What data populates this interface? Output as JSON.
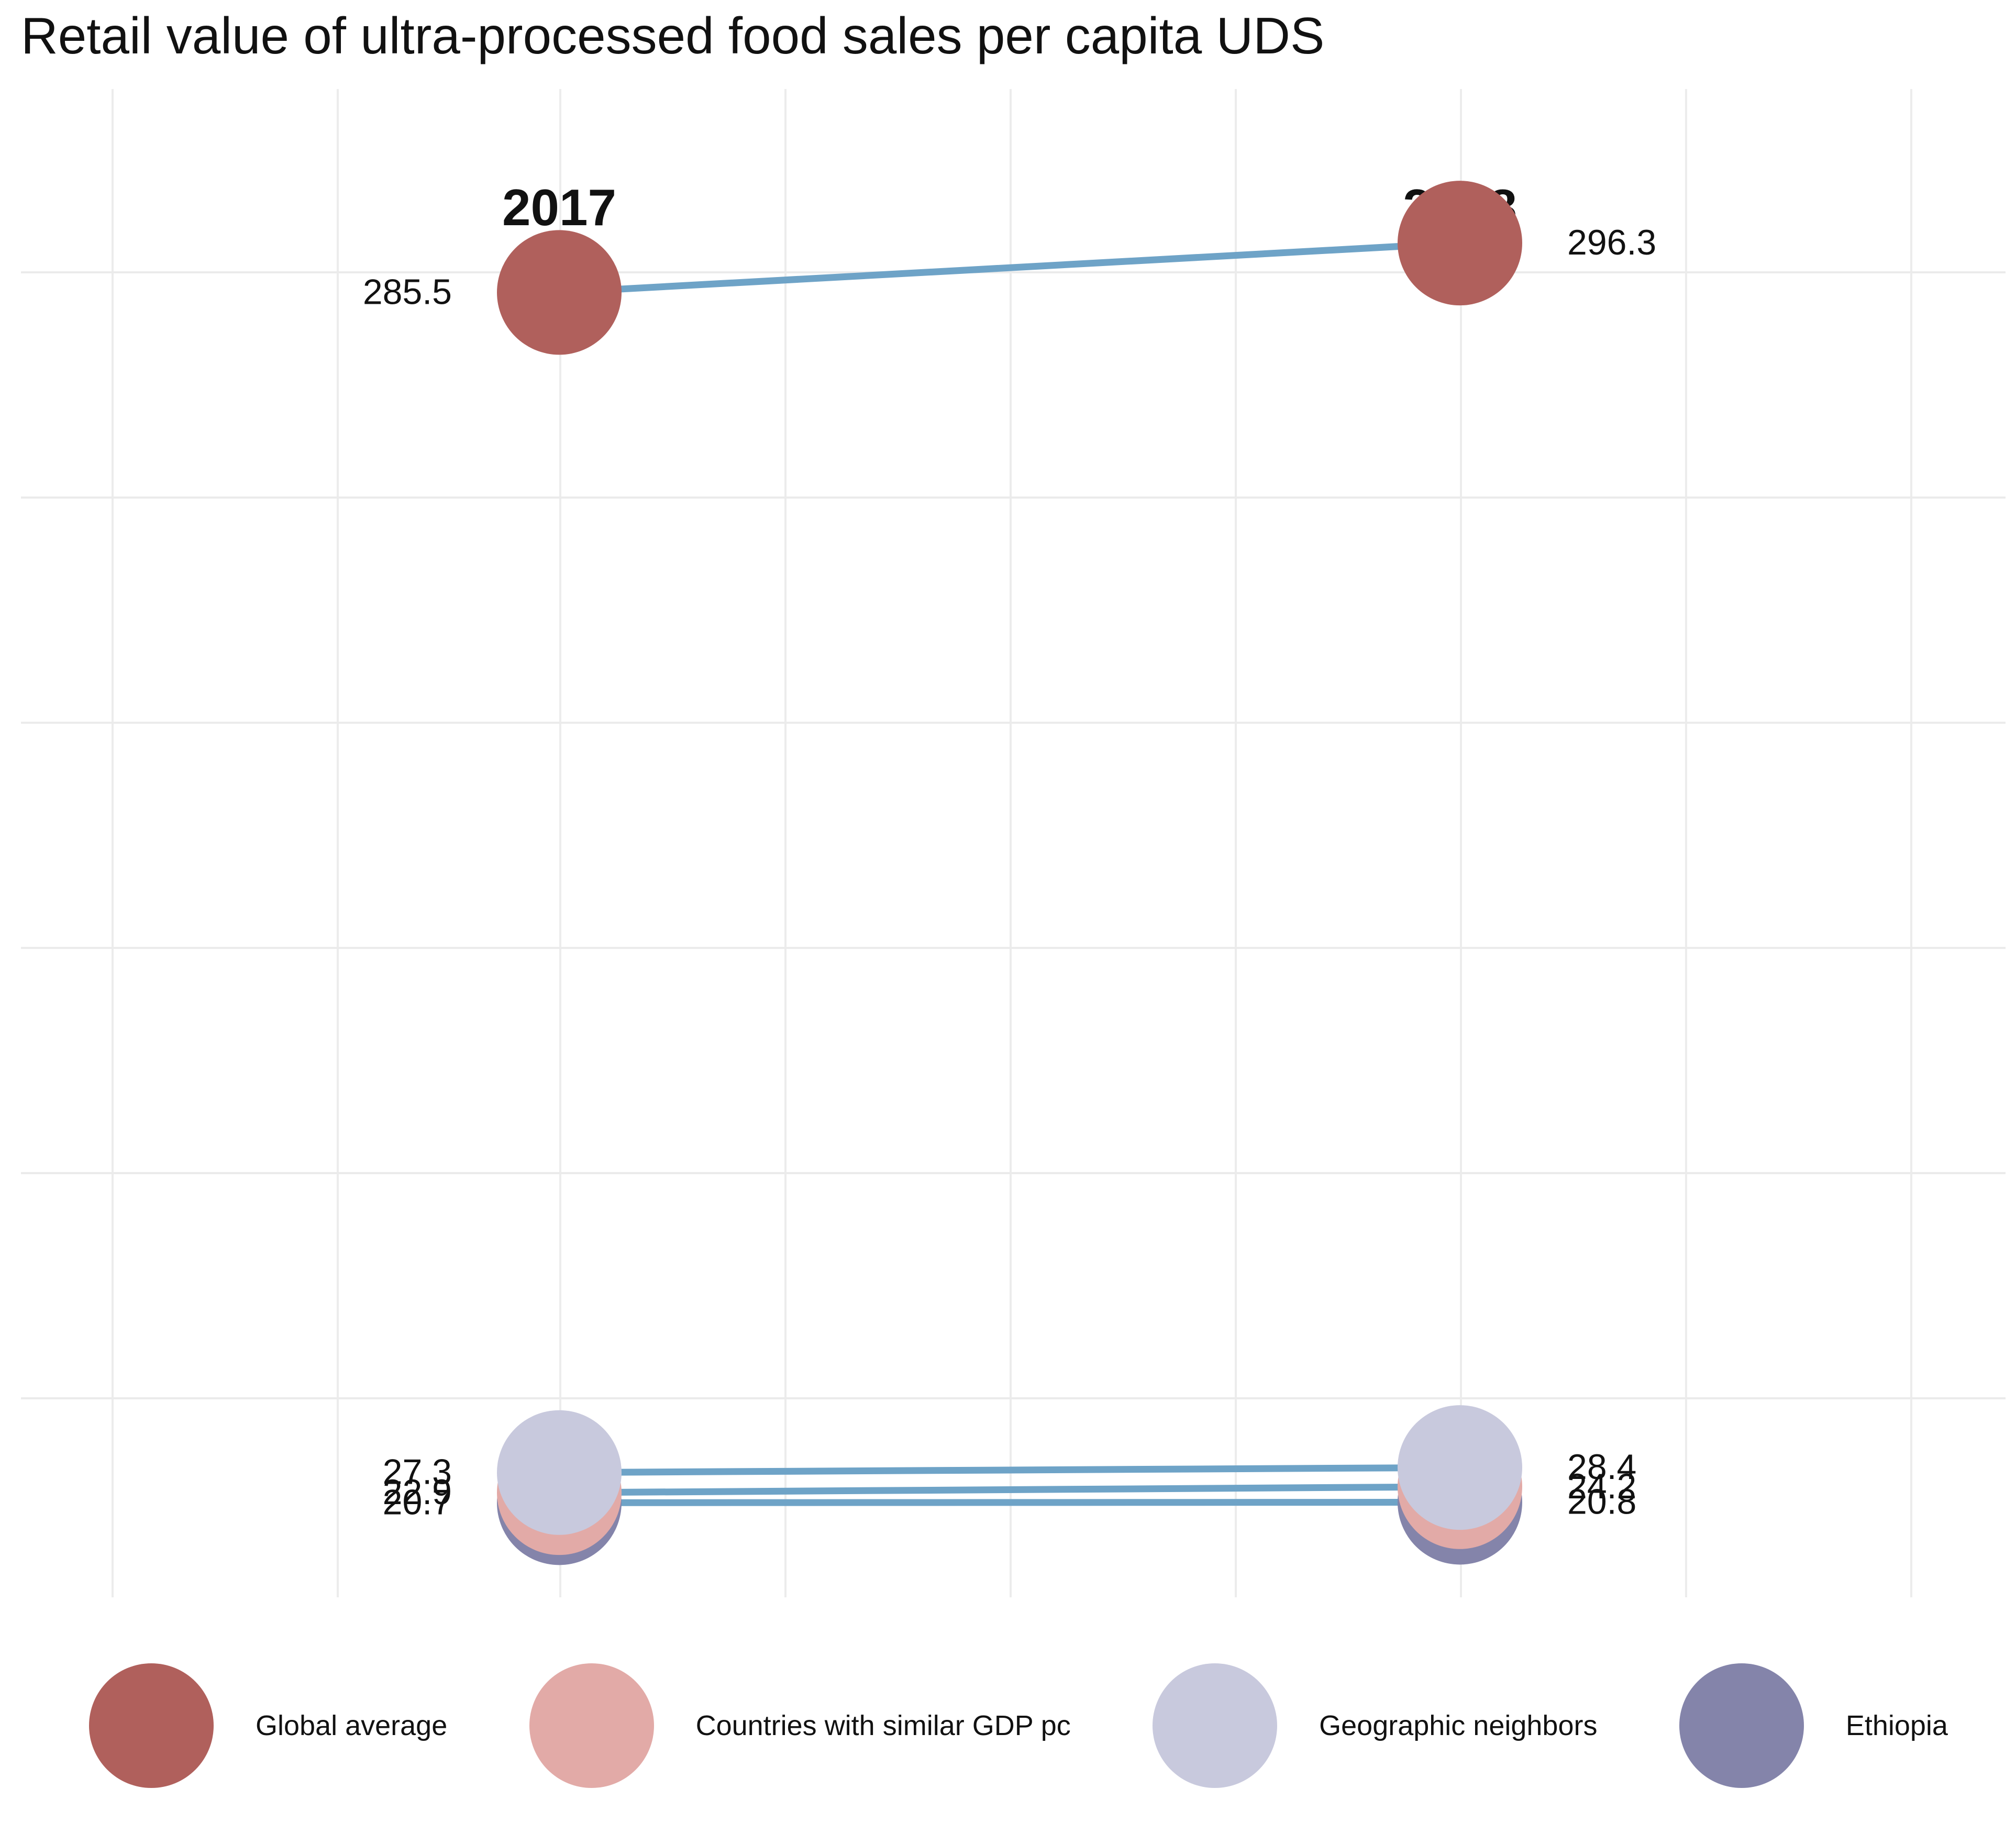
{
  "chart_data": {
    "type": "line",
    "title": "Retail value of ultra-processed food sales per capita UDS",
    "x": [
      "2017",
      "2018"
    ],
    "xlabel": "",
    "ylabel": "",
    "ylim": [
      0,
      330
    ],
    "grid": true,
    "legend_position": "bottom",
    "series": [
      {
        "name": "Global average",
        "color": "#b0605c",
        "values": [
          285.5,
          296.3
        ],
        "labels": [
          "285.5",
          "296.3"
        ]
      },
      {
        "name": "Countries with similar GDP pc",
        "color": "#e2aaa7",
        "values": [
          22.9,
          24.2
        ],
        "labels": [
          "22.9",
          "24.2"
        ]
      },
      {
        "name": "Geographic neighbors",
        "color": "#c8c9dd",
        "values": [
          27.3,
          28.4
        ],
        "labels": [
          "27.3",
          "28.4"
        ]
      },
      {
        "name": "Ethiopia",
        "color": "#8484aa",
        "values": [
          20.7,
          20.8
        ],
        "labels": [
          "20.7",
          "20.8"
        ]
      }
    ],
    "line_color": "#6ea3c7"
  }
}
